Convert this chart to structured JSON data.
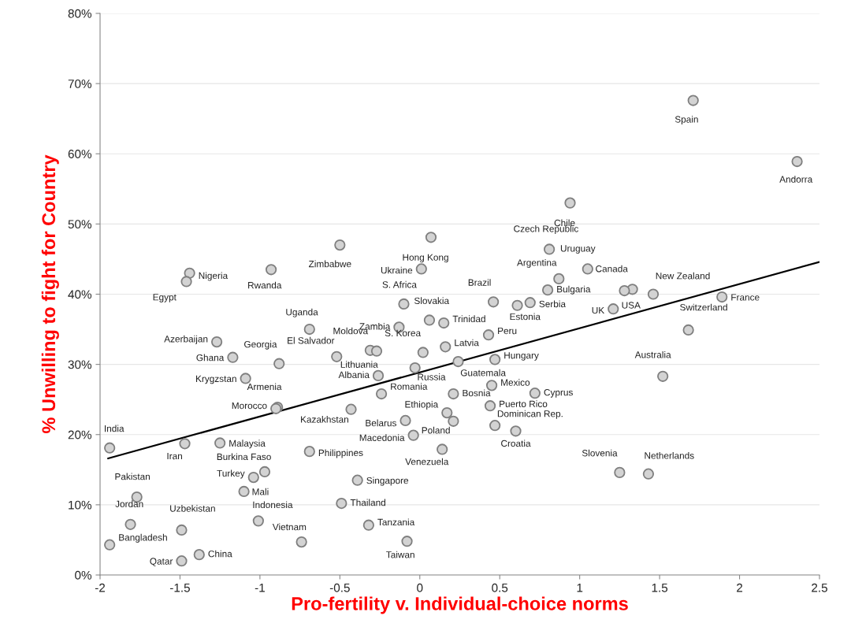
{
  "chart_data": {
    "type": "scatter",
    "xlabel": "Pro-fertility v. Individual-choice norms",
    "ylabel": "% Unwilling to fight for Country",
    "xlim": [
      -2,
      2.5
    ],
    "ylim": [
      0,
      80
    ],
    "xticks": [
      -2,
      -1.5,
      -1,
      -0.5,
      0,
      0.5,
      1,
      1.5,
      2,
      2.5
    ],
    "yticks": [
      {
        "value": 0,
        "label": "0%"
      },
      {
        "value": 10,
        "label": "10%"
      },
      {
        "value": 20,
        "label": "20%"
      },
      {
        "value": 30,
        "label": "30%"
      },
      {
        "value": 40,
        "label": "40%"
      },
      {
        "value": 50,
        "label": "50%"
      },
      {
        "value": 60,
        "label": "60%"
      },
      {
        "value": 70,
        "label": "70%"
      },
      {
        "value": 80,
        "label": "80%"
      }
    ],
    "grid": "y",
    "series": [
      {
        "marker": "circle",
        "color": "#d3d3d3",
        "x": [
          1.71,
          2.36,
          0.94,
          0.81,
          1.05,
          0.87,
          1.33,
          1.28,
          1.46,
          1.89,
          1.21,
          1.68,
          0.8,
          0.69,
          0.61,
          0.46,
          0.43,
          0.47,
          0.24,
          1.52,
          0.45,
          0.72,
          0.44,
          0.47,
          0.6,
          1.25,
          1.43,
          -0.5,
          0.07,
          0.01,
          -0.93,
          -0.1,
          0.06,
          0.15,
          -0.13,
          -0.69,
          -0.31,
          -0.27,
          0.02,
          0.16,
          -0.52,
          -0.88,
          -0.03,
          -0.26,
          -0.24,
          0.21,
          -0.89,
          -0.9,
          -0.43,
          0.17,
          -0.09,
          0.21,
          -0.04,
          0.14,
          -0.69,
          -1.27,
          -1.17,
          -1.09,
          -1.44,
          -1.46,
          -1.94,
          -1.47,
          -1.25,
          -0.97,
          -1.04,
          -1.1,
          -1.77,
          -1.81,
          -1.49,
          -1.01,
          -0.74,
          -1.94,
          -1.38,
          -1.49,
          -0.39,
          -0.49,
          -0.32,
          -0.08
        ],
        "values": [
          67.6,
          58.9,
          53.0,
          46.4,
          43.6,
          42.2,
          40.7,
          40.5,
          40.0,
          39.6,
          37.9,
          34.9,
          40.6,
          38.8,
          38.4,
          38.9,
          34.2,
          30.7,
          30.4,
          28.3,
          27.0,
          25.9,
          24.1,
          21.3,
          20.5,
          14.6,
          14.4,
          47.0,
          48.1,
          43.6,
          43.5,
          38.6,
          36.3,
          35.9,
          35.3,
          35.0,
          32.0,
          31.9,
          31.7,
          32.5,
          31.1,
          30.1,
          29.5,
          28.4,
          25.8,
          25.8,
          23.9,
          23.7,
          23.6,
          23.1,
          22.0,
          21.9,
          19.9,
          17.9,
          17.6,
          33.2,
          31.0,
          28.0,
          43.0,
          41.8,
          18.1,
          18.7,
          18.8,
          14.7,
          13.9,
          11.9,
          11.1,
          7.2,
          6.4,
          7.7,
          4.7,
          4.3,
          2.9,
          2.0,
          13.5,
          10.2,
          7.1,
          4.8
        ]
      },
      {
        "type": "line",
        "color": "#000000",
        "x": [
          -1.95,
          2.5
        ],
        "values": [
          16.6,
          44.6
        ]
      }
    ],
    "annotations": [
      {
        "text": "Spain",
        "x": 1.71,
        "y": 67.6
      },
      {
        "text": "Andorra",
        "x": 2.36,
        "y": 58.9
      },
      {
        "text": "Chile",
        "x": 0.94,
        "y": 53.0
      },
      {
        "text": "Czech Republic",
        "x": 0.81,
        "y": 46.4
      },
      {
        "text": "Uruguay",
        "x": 1.05,
        "y": 43.6
      },
      {
        "text": "Argentina",
        "x": 0.87,
        "y": 42.2
      },
      {
        "text": "Canada",
        "x": 1.33,
        "y": 40.7
      },
      {
        "text": "USA",
        "x": 1.28,
        "y": 40.5
      },
      {
        "text": "New Zealand",
        "x": 1.46,
        "y": 40.0
      },
      {
        "text": "France",
        "x": 1.89,
        "y": 39.6
      },
      {
        "text": "UK",
        "x": 1.21,
        "y": 37.9
      },
      {
        "text": "Switzerland",
        "x": 1.68,
        "y": 34.9
      },
      {
        "text": "Bulgaria",
        "x": 0.8,
        "y": 40.6
      },
      {
        "text": "Serbia",
        "x": 0.69,
        "y": 38.8
      },
      {
        "text": "Estonia",
        "x": 0.61,
        "y": 38.4
      },
      {
        "text": "Brazil",
        "x": 0.46,
        "y": 38.9
      },
      {
        "text": "Peru",
        "x": 0.43,
        "y": 34.2
      },
      {
        "text": "Hungary",
        "x": 0.47,
        "y": 30.7
      },
      {
        "text": "Guatemala",
        "x": 0.24,
        "y": 30.4
      },
      {
        "text": "Australia",
        "x": 1.52,
        "y": 28.3
      },
      {
        "text": "Mexico",
        "x": 0.45,
        "y": 27.0
      },
      {
        "text": "Cyprus",
        "x": 0.72,
        "y": 25.9
      },
      {
        "text": "Puerto Rico",
        "x": 0.44,
        "y": 24.1
      },
      {
        "text": "Dominican Rep.",
        "x": 0.47,
        "y": 21.3
      },
      {
        "text": "Croatia",
        "x": 0.6,
        "y": 20.5
      },
      {
        "text": "Slovenia",
        "x": 1.25,
        "y": 14.6
      },
      {
        "text": "Netherlands",
        "x": 1.43,
        "y": 14.4
      },
      {
        "text": "Zimbabwe",
        "x": -0.5,
        "y": 47.0
      },
      {
        "text": "Hong Kong",
        "x": 0.07,
        "y": 48.1
      },
      {
        "text": "Ukraine",
        "x": 0.01,
        "y": 43.6
      },
      {
        "text": "Rwanda",
        "x": -0.93,
        "y": 43.5
      },
      {
        "text": "S. Africa",
        "x": -0.1,
        "y": 38.6
      },
      {
        "text": "Slovakia",
        "x": 0.06,
        "y": 36.3
      },
      {
        "text": "Trinidad",
        "x": 0.15,
        "y": 35.9
      },
      {
        "text": "Zambia",
        "x": -0.13,
        "y": 35.3
      },
      {
        "text": "Uganda",
        "x": -0.69,
        "y": 35.0
      },
      {
        "text": "Moldova",
        "x": -0.31,
        "y": 32.0
      },
      {
        "text": "Lithuania",
        "x": -0.27,
        "y": 31.9
      },
      {
        "text": "S. Korea",
        "x": 0.02,
        "y": 31.7
      },
      {
        "text": "Latvia",
        "x": 0.16,
        "y": 32.5
      },
      {
        "text": "El Salvador",
        "x": -0.52,
        "y": 31.1
      },
      {
        "text": "Georgia",
        "x": -0.88,
        "y": 30.1
      },
      {
        "text": "Russia",
        "x": -0.03,
        "y": 29.5
      },
      {
        "text": "Albania",
        "x": -0.26,
        "y": 28.4
      },
      {
        "text": "Romania",
        "x": -0.24,
        "y": 25.8
      },
      {
        "text": "Bosnia",
        "x": 0.21,
        "y": 25.8
      },
      {
        "text": "Armenia",
        "x": -0.89,
        "y": 23.9
      },
      {
        "text": "Morocco",
        "x": -0.9,
        "y": 23.7
      },
      {
        "text": "Kazakhstan",
        "x": -0.43,
        "y": 23.6
      },
      {
        "text": "Ethiopia",
        "x": 0.17,
        "y": 23.1
      },
      {
        "text": "Belarus",
        "x": -0.09,
        "y": 22.0
      },
      {
        "text": "Poland",
        "x": 0.21,
        "y": 21.9
      },
      {
        "text": "Macedonia",
        "x": -0.04,
        "y": 19.9
      },
      {
        "text": "Venezuela",
        "x": 0.14,
        "y": 17.9
      },
      {
        "text": "Philippines",
        "x": -0.69,
        "y": 17.6
      },
      {
        "text": "Azerbaijan",
        "x": -1.27,
        "y": 33.2
      },
      {
        "text": "Ghana",
        "x": -1.17,
        "y": 31.0
      },
      {
        "text": "Krygzstan",
        "x": -1.09,
        "y": 28.0
      },
      {
        "text": "Nigeria",
        "x": -1.44,
        "y": 43.0
      },
      {
        "text": "Egypt",
        "x": -1.46,
        "y": 41.8
      },
      {
        "text": "India",
        "x": -1.94,
        "y": 18.1
      },
      {
        "text": "Iran",
        "x": -1.47,
        "y": 18.7
      },
      {
        "text": "Malaysia",
        "x": -1.25,
        "y": 18.8
      },
      {
        "text": "Burkina Faso",
        "x": -0.97,
        "y": 14.7
      },
      {
        "text": "Turkey",
        "x": -1.04,
        "y": 13.9
      },
      {
        "text": "Mali",
        "x": -1.1,
        "y": 11.9
      },
      {
        "text": "Pakistan",
        "x": -1.77,
        "y": 11.1
      },
      {
        "text": "Jordan",
        "x": -1.81,
        "y": 7.2
      },
      {
        "text": "Uzbekistan",
        "x": -1.49,
        "y": 6.4
      },
      {
        "text": "Indonesia",
        "x": -1.01,
        "y": 7.7
      },
      {
        "text": "Vietnam",
        "x": -0.74,
        "y": 4.7
      },
      {
        "text": "Bangladesh",
        "x": -1.94,
        "y": 4.3
      },
      {
        "text": "China",
        "x": -1.38,
        "y": 2.9
      },
      {
        "text": "Qatar",
        "x": -1.49,
        "y": 2.0
      },
      {
        "text": "Singapore",
        "x": -0.39,
        "y": 13.5
      },
      {
        "text": "Thailand",
        "x": -0.49,
        "y": 10.2
      },
      {
        "text": "Tanzania",
        "x": -0.32,
        "y": 7.1
      },
      {
        "text": "Taiwan",
        "x": -0.08,
        "y": 4.8
      }
    ]
  }
}
